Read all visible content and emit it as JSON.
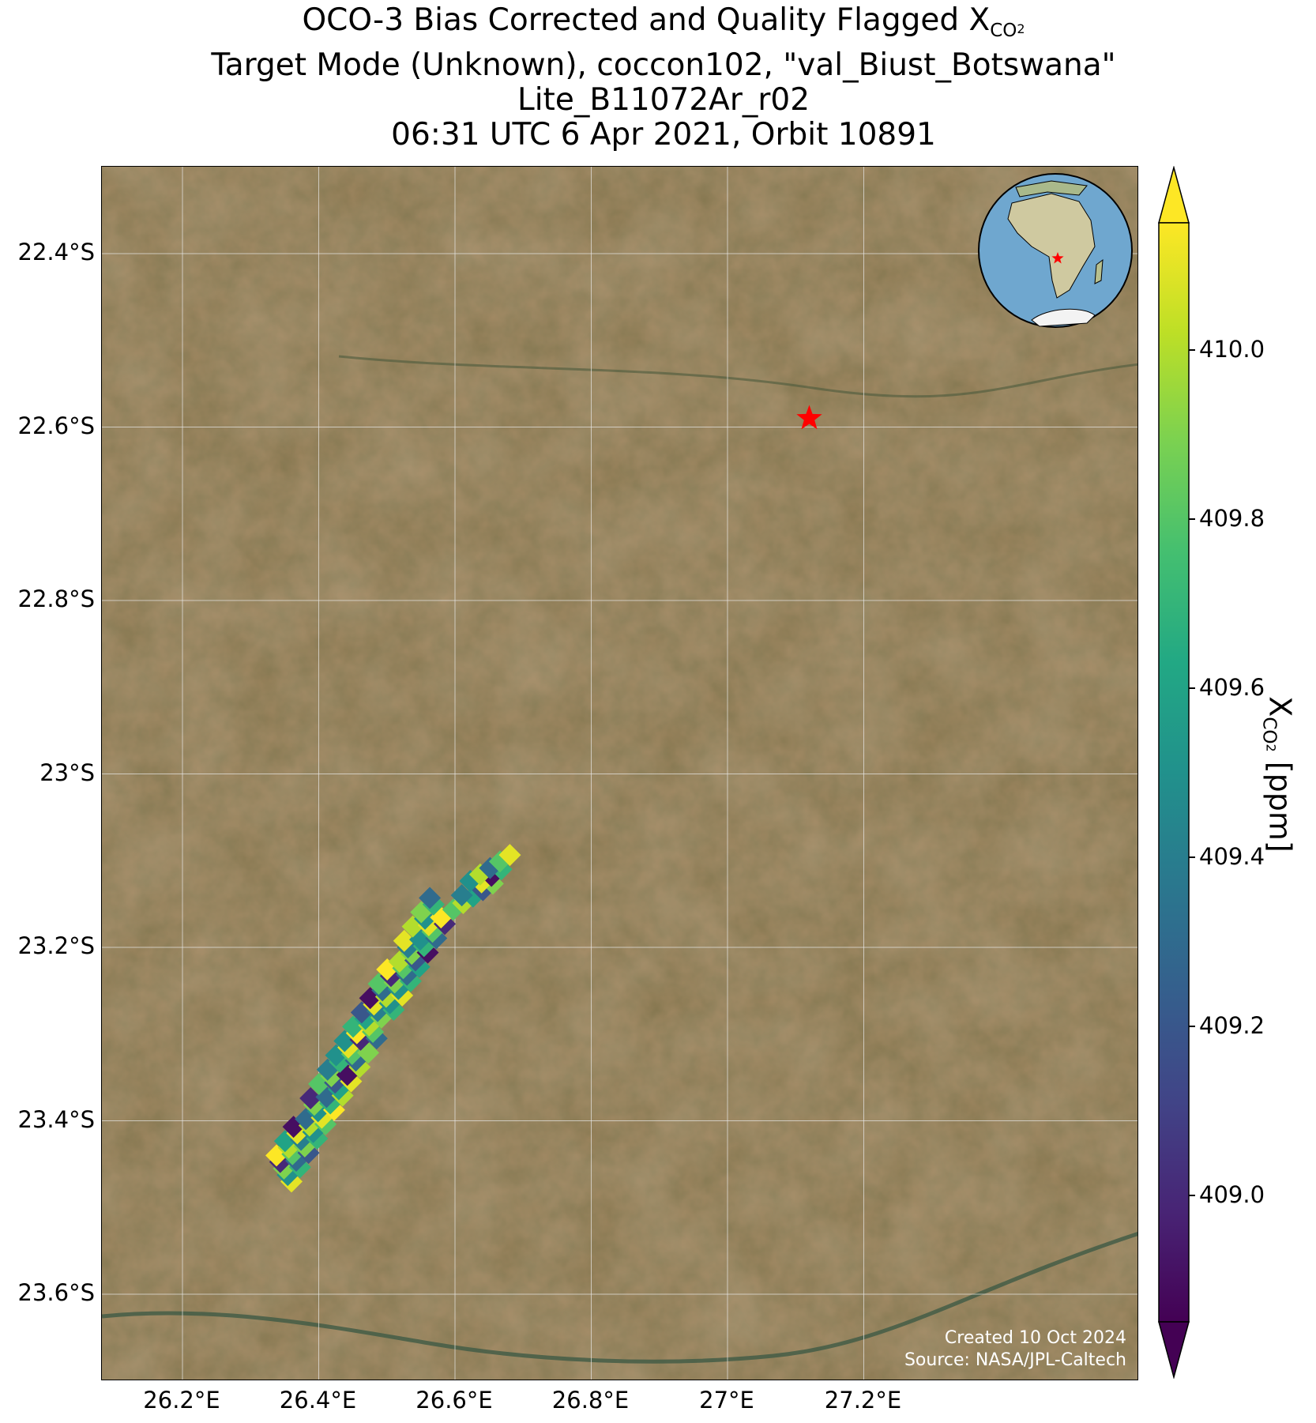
{
  "title": {
    "line1_prefix": "OCO-3 Bias Corrected and Quality Flagged X",
    "line1_sub": "CO",
    "line1_sub2": "2",
    "line2": "Target Mode (Unknown), coccon102, \"val_Biust_Botswana\"",
    "line3": "Lite_B11072Ar_r02",
    "line4": "06:31 UTC 6 Apr 2021, Orbit 10891"
  },
  "map": {
    "lat_labels": [
      "22.4°S",
      "22.6°S",
      "22.8°S",
      "23°S",
      "23.2°S",
      "23.4°S",
      "23.6°S"
    ],
    "lon_labels": [
      "26.2°E",
      "26.4°E",
      "26.6°E",
      "26.8°E",
      "27°E",
      "27.2°E"
    ],
    "lat_values": [
      -22.4,
      -22.6,
      -22.8,
      -23.0,
      -23.2,
      -23.4,
      -23.6
    ],
    "lon_values": [
      26.2,
      26.4,
      26.6,
      26.8,
      27.0,
      27.2
    ],
    "target_marker": {
      "lat": -22.59,
      "lon": 27.12,
      "color": "#ff0000"
    },
    "credits_line1": "Created 10 Oct 2024",
    "credits_line2": "Source: NASA/JPL-Caltech",
    "inset_globe": {
      "marker_color": "#ff0000"
    }
  },
  "colorbar": {
    "ticks": [
      "409.0",
      "409.2",
      "409.4",
      "409.6",
      "409.8",
      "410.0"
    ],
    "tick_values": [
      409.0,
      409.2,
      409.4,
      409.6,
      409.8,
      410.0
    ],
    "vmin": 408.85,
    "vmax": 410.15,
    "colormap": "viridis",
    "label_prefix": "X",
    "label_sub": "CO",
    "label_sub2": "2",
    "label_suffix": " [ppm]"
  }
}
